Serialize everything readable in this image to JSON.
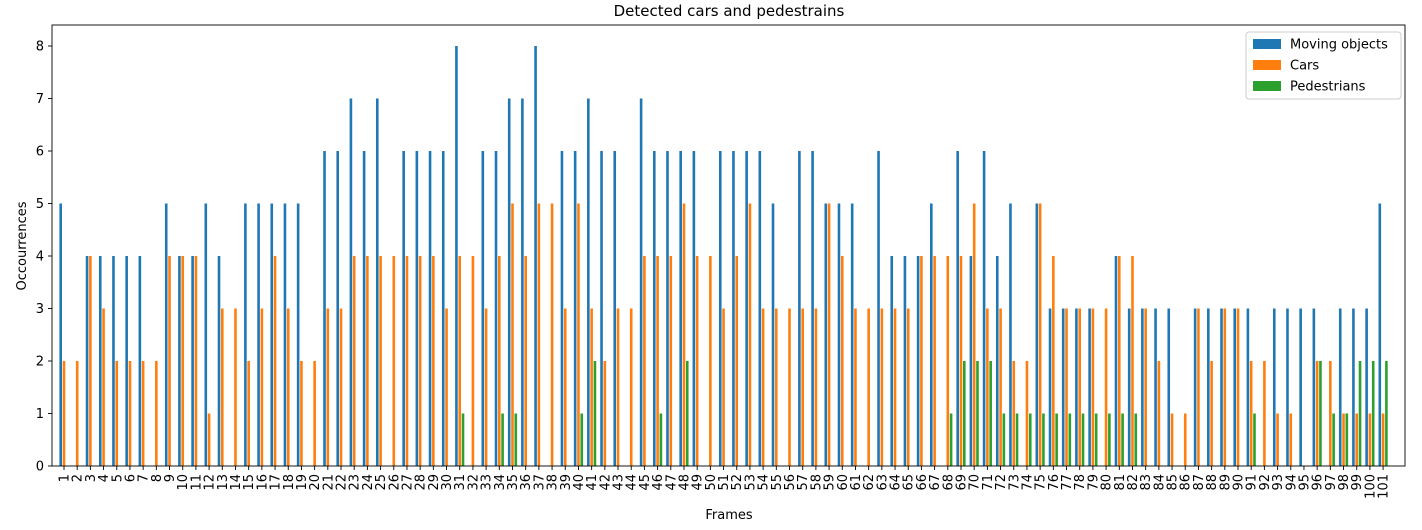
{
  "chart_data": {
    "type": "bar",
    "title": "Detected cars and pedestrains",
    "xlabel": "Frames",
    "ylabel": "Occourrences",
    "ylim": [
      0,
      8.4
    ],
    "yticks": [
      0,
      1,
      2,
      3,
      4,
      5,
      6,
      7,
      8
    ],
    "legend_position": "top-right",
    "categories": [
      "1",
      "2",
      "3",
      "4",
      "5",
      "6",
      "7",
      "8",
      "9",
      "10",
      "11",
      "12",
      "13",
      "14",
      "15",
      "16",
      "17",
      "18",
      "19",
      "20",
      "21",
      "22",
      "23",
      "24",
      "25",
      "26",
      "27",
      "28",
      "29",
      "30",
      "31",
      "32",
      "33",
      "34",
      "35",
      "36",
      "37",
      "38",
      "39",
      "40",
      "41",
      "42",
      "43",
      "44",
      "45",
      "46",
      "47",
      "48",
      "49",
      "50",
      "51",
      "52",
      "53",
      "54",
      "55",
      "56",
      "57",
      "58",
      "59",
      "60",
      "61",
      "62",
      "63",
      "64",
      "65",
      "66",
      "67",
      "68",
      "69",
      "70",
      "71",
      "72",
      "73",
      "74",
      "75",
      "76",
      "77",
      "78",
      "79",
      "80",
      "81",
      "82",
      "83",
      "84",
      "85",
      "86",
      "87",
      "88",
      "89",
      "90",
      "91",
      "92",
      "93",
      "94",
      "95",
      "96",
      "97",
      "98",
      "99",
      "100",
      "101"
    ],
    "series": [
      {
        "name": "Moving objects",
        "color": "#1f77b4",
        "values": [
          5,
          0,
          4,
          4,
          4,
          4,
          4,
          0,
          5,
          4,
          4,
          5,
          4,
          0,
          5,
          5,
          5,
          5,
          5,
          0,
          6,
          6,
          7,
          6,
          7,
          0,
          6,
          6,
          6,
          6,
          8,
          0,
          6,
          6,
          7,
          7,
          8,
          0,
          6,
          6,
          7,
          6,
          6,
          0,
          7,
          6,
          6,
          6,
          6,
          0,
          6,
          6,
          6,
          6,
          5,
          0,
          6,
          6,
          5,
          5,
          5,
          0,
          6,
          4,
          4,
          4,
          5,
          0,
          6,
          4,
          6,
          4,
          5,
          0,
          5,
          3,
          3,
          3,
          3,
          0,
          4,
          3,
          3,
          3,
          3,
          0,
          3,
          3,
          3,
          3,
          3,
          0,
          3,
          3,
          3,
          3,
          0,
          3,
          3,
          3,
          5
        ]
      },
      {
        "name": "Cars",
        "color": "#ff7f0e",
        "values": [
          2,
          2,
          4,
          3,
          2,
          2,
          2,
          2,
          4,
          4,
          4,
          1,
          3,
          3,
          2,
          3,
          4,
          3,
          2,
          2,
          3,
          3,
          4,
          4,
          4,
          4,
          4,
          4,
          4,
          3,
          4,
          4,
          3,
          4,
          5,
          4,
          5,
          5,
          3,
          5,
          3,
          2,
          3,
          3,
          4,
          4,
          4,
          5,
          4,
          4,
          3,
          4,
          5,
          3,
          3,
          3,
          3,
          3,
          5,
          4,
          3,
          3,
          3,
          3,
          3,
          4,
          4,
          4,
          4,
          5,
          3,
          3,
          2,
          2,
          5,
          4,
          3,
          3,
          3,
          3,
          4,
          4,
          3,
          2,
          1,
          1,
          3,
          2,
          3,
          3,
          2,
          2,
          1,
          1,
          0,
          2,
          2,
          1,
          1,
          1,
          1
        ]
      },
      {
        "name": "Pedestrians",
        "color": "#2ca02c",
        "values": [
          0,
          0,
          0,
          0,
          0,
          0,
          0,
          0,
          0,
          0,
          0,
          0,
          0,
          0,
          0,
          0,
          0,
          0,
          0,
          0,
          0,
          0,
          0,
          0,
          0,
          0,
          0,
          0,
          0,
          0,
          1,
          0,
          0,
          1,
          1,
          0,
          0,
          0,
          0,
          1,
          2,
          0,
          0,
          0,
          0,
          1,
          0,
          2,
          0,
          0,
          0,
          0,
          0,
          0,
          0,
          0,
          0,
          0,
          0,
          0,
          0,
          0,
          0,
          0,
          0,
          0,
          0,
          1,
          2,
          2,
          2,
          1,
          1,
          1,
          1,
          1,
          1,
          1,
          1,
          1,
          1,
          1,
          0,
          0,
          0,
          0,
          0,
          0,
          0,
          0,
          1,
          0,
          0,
          0,
          0,
          2,
          1,
          1,
          2,
          2,
          2
        ]
      }
    ]
  }
}
